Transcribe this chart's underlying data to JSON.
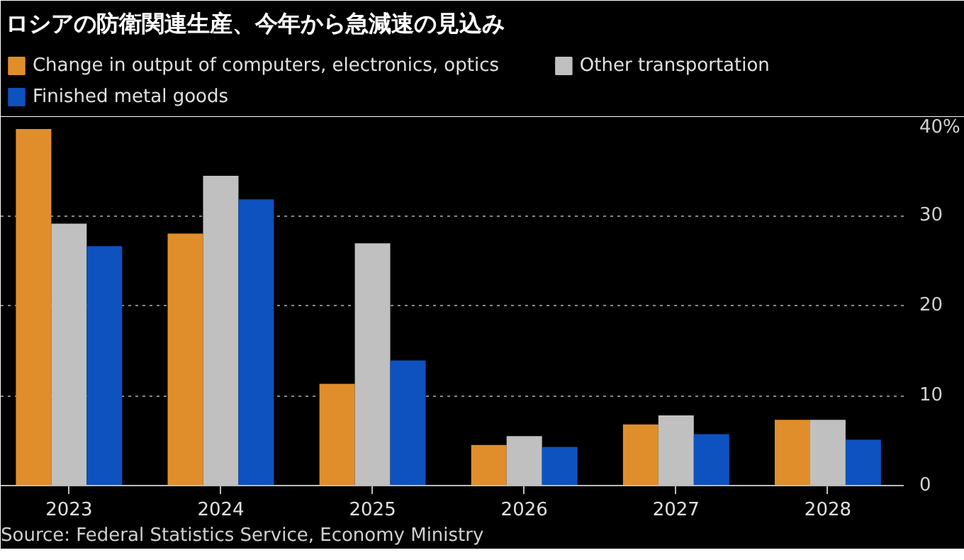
{
  "chart_data": {
    "type": "bar",
    "title": "ロシアの防衛関連生産、今年から急減速の見込み",
    "categories": [
      "2023",
      "2024",
      "2025",
      "2026",
      "2027",
      "2028"
    ],
    "series": [
      {
        "name": "Change in output of computers, electronics, optics",
        "color": "#e08e2b",
        "values": [
          39.6,
          28.0,
          11.3,
          4.5,
          6.8,
          7.3
        ]
      },
      {
        "name": "Other transportation",
        "color": "#c0c0c0",
        "values": [
          29.1,
          34.4,
          26.9,
          5.5,
          7.8,
          7.3
        ]
      },
      {
        "name": "Finished metal goods",
        "color": "#0d52bf",
        "values": [
          26.6,
          31.8,
          13.9,
          4.3,
          5.7,
          5.1
        ]
      }
    ],
    "ylim": [
      0,
      40
    ],
    "yticks": [
      0,
      10,
      20,
      30,
      {
        "value": 40,
        "label": "40%"
      }
    ],
    "grid": "y",
    "legend": "top left",
    "annotations": [
      "Source: Federal Statistics Service, Economy Ministry"
    ]
  }
}
